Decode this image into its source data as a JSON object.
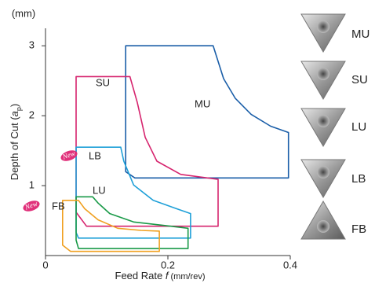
{
  "chart_data": {
    "type": "region",
    "y_unit": "(mm)",
    "y_label": [
      "Depth of Cut (",
      "a",
      "p",
      ")"
    ],
    "x_label": [
      "Feed Rate ",
      "f",
      " (mm/rev)"
    ],
    "xlim": [
      0,
      0.4
    ],
    "ylim": [
      0,
      3.25
    ],
    "xticks": [
      0,
      0.2,
      0.4
    ],
    "yticks": [
      1,
      2,
      3
    ],
    "series": [
      {
        "name": "MU",
        "color": "#1a5ea8",
        "x": [
          0.131,
          0.131,
          0.274,
          0.291,
          0.31,
          0.336,
          0.368,
          0.397,
          0.397,
          0.146
        ],
        "values": [
          1.2,
          3.0,
          3.0,
          2.53,
          2.25,
          2.02,
          1.85,
          1.76,
          1.11,
          1.11
        ]
      },
      {
        "name": "SU",
        "color": "#d6246e",
        "x": [
          0.05,
          0.05,
          0.138,
          0.15,
          0.163,
          0.182,
          0.221,
          0.282,
          0.282,
          0.067
        ],
        "values": [
          0.62,
          2.56,
          2.56,
          2.19,
          1.69,
          1.35,
          1.16,
          1.09,
          0.42,
          0.42
        ]
      },
      {
        "name": "LB",
        "color": "#1fa0d8",
        "x": [
          0.05,
          0.05,
          0.123,
          0.128,
          0.144,
          0.176,
          0.214,
          0.237,
          0.237,
          0.054
        ],
        "values": [
          0.33,
          1.55,
          1.55,
          1.35,
          1.01,
          0.79,
          0.67,
          0.6,
          0.25,
          0.25
        ]
      },
      {
        "name": "LU",
        "color": "#1a9a48",
        "x": [
          0.05,
          0.05,
          0.077,
          0.086,
          0.105,
          0.144,
          0.195,
          0.233,
          0.233,
          0.054
        ],
        "values": [
          0.22,
          0.84,
          0.84,
          0.75,
          0.6,
          0.48,
          0.43,
          0.39,
          0.1,
          0.1
        ]
      },
      {
        "name": "FB",
        "color": "#f0a020",
        "x": [
          0.028,
          0.028,
          0.054,
          0.064,
          0.086,
          0.118,
          0.156,
          0.186,
          0.186,
          0.041
        ],
        "values": [
          0.15,
          0.79,
          0.79,
          0.67,
          0.51,
          0.39,
          0.36,
          0.35,
          0.06,
          0.06
        ]
      }
    ],
    "badges": [
      "New",
      "New"
    ],
    "inserts": [
      "MU",
      "SU",
      "LU",
      "LB",
      "FB"
    ]
  }
}
